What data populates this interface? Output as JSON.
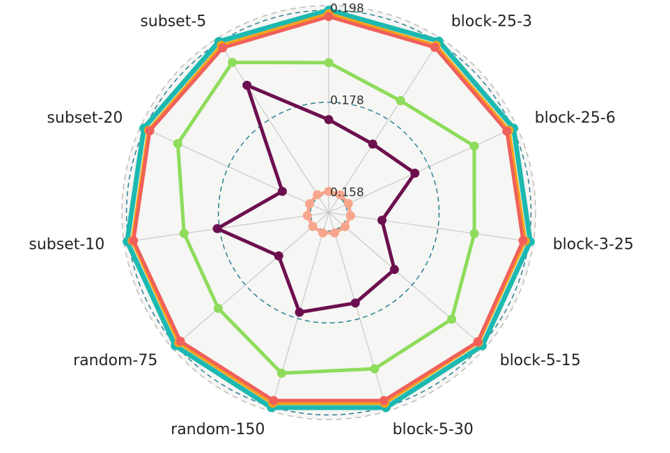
{
  "chart_data": {
    "type": "radar",
    "categories": [
      null,
      "block-25-3",
      "block-25-6",
      "block-3-25",
      "block-5-15",
      "block-5-30",
      "random-150",
      "random-75",
      "subset-10",
      "subset-20",
      "subset-5"
    ],
    "ylim": [
      0.154,
      0.199
    ],
    "yticks": [
      0.158,
      0.178,
      0.198
    ],
    "series": [
      {
        "color": "#1db9b1",
        "values": [
          0.198,
          0.1983,
          0.1982,
          0.1983,
          0.1982,
          0.1982,
          0.1982,
          0.1982,
          0.1983,
          0.1982,
          0.1982
        ]
      },
      {
        "color": "#f5a31c",
        "values": [
          0.1972,
          0.1972,
          0.1971,
          0.1972,
          0.1971,
          0.1972,
          0.1972,
          0.1972,
          0.1972,
          0.1971,
          0.1972
        ]
      },
      {
        "color": "#f0605a",
        "values": [
          0.1966,
          0.1967,
          0.1966,
          0.1967,
          0.1969,
          0.1966,
          0.1966,
          0.1967,
          0.1969,
          0.1968,
          0.1966
        ]
      },
      {
        "color": "#8edc5c",
        "values": [
          0.1866,
          0.1829,
          0.1888,
          0.186,
          0.1894,
          0.1894,
          0.1904,
          0.1858,
          0.1858,
          0.1901,
          0.1928
        ]
      },
      {
        "color": "#6c0f4f",
        "values": [
          0.1742,
          0.1717,
          0.1746,
          0.1657,
          0.1729,
          0.1745,
          0.1766,
          0.1684,
          0.1785,
          0.1651,
          0.1869
        ]
      },
      {
        "color": "#f7a68d",
        "values": [
          0.1586,
          0.1586,
          0.1587,
          0.1588,
          0.1587,
          0.1586,
          0.1586,
          0.1586,
          0.1587,
          0.1586,
          0.1586
        ]
      }
    ]
  }
}
